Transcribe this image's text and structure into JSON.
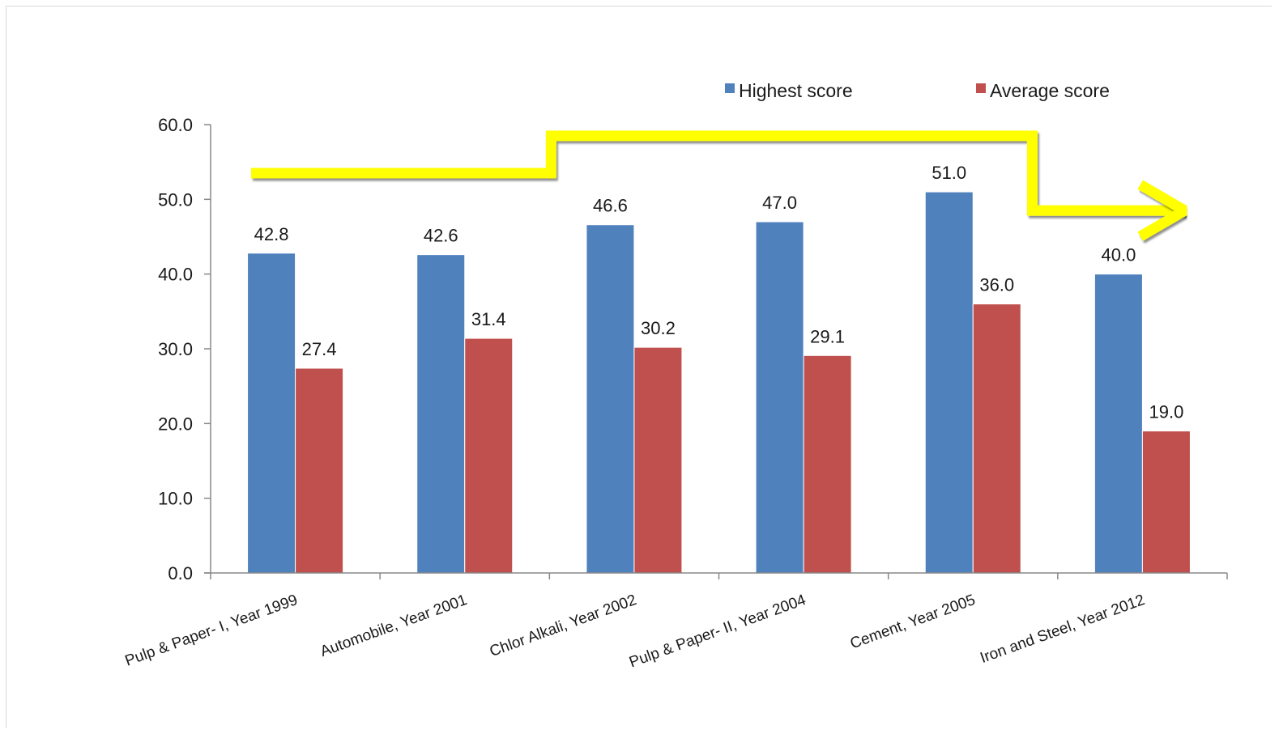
{
  "chart_data": {
    "type": "bar",
    "title": "",
    "xlabel": "",
    "ylabel": "",
    "categories": [
      "Pulp & Paper- I, Year 1999",
      "Automobile, Year 2001",
      "Chlor Alkali, Year 2002",
      "Pulp & Paper- II, Year 2004",
      "Cement, Year 2005",
      "Iron and Steel, Year 2012"
    ],
    "series": [
      {
        "name": "Highest score",
        "color": "#4f81bd",
        "values": [
          42.8,
          42.6,
          46.6,
          47.0,
          51.0,
          40.0
        ],
        "labels": [
          "42.8",
          "42.6",
          "46.6",
          "47.0",
          "51.0",
          "40.0"
        ]
      },
      {
        "name": "Average score",
        "color": "#c0504d",
        "values": [
          27.4,
          31.4,
          30.2,
          29.1,
          36.0,
          19.0
        ],
        "labels": [
          "27.4",
          "31.4",
          "30.2",
          "29.1",
          "36.0",
          "19.0"
        ]
      }
    ],
    "ylim": [
      0,
      60
    ],
    "yticks": [
      0,
      10,
      20,
      30,
      40,
      50,
      60
    ],
    "ytick_labels": [
      "0.0",
      "10.0",
      "20.0",
      "30.0",
      "40.0",
      "50.0",
      "60.0"
    ],
    "legend_position": "top-right",
    "grid": false,
    "annotation": {
      "type": "step-arrow",
      "color": "#ffff00",
      "description_values": [
        53.5,
        58.5,
        48.5
      ]
    }
  }
}
